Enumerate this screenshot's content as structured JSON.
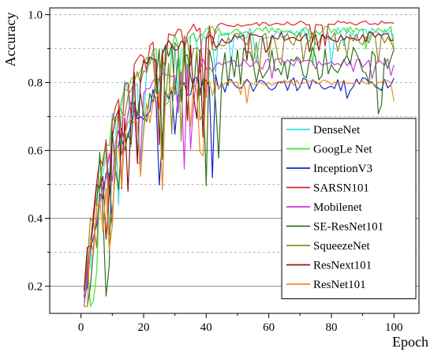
{
  "chart_data": {
    "type": "line",
    "title": "",
    "xlabel": "Epoch",
    "ylabel": "Accuracy",
    "xlim": [
      -10,
      108
    ],
    "ylim": [
      0.12,
      1.02
    ],
    "xticks": [
      0,
      20,
      40,
      60,
      80,
      100
    ],
    "yticks": [
      0.2,
      0.4,
      0.6,
      0.8,
      1.0
    ],
    "ytick_labels": [
      "0.2",
      "0.4",
      "0.6",
      "0.8",
      "1.0"
    ],
    "grid": "horizontal dashed",
    "legend_position": "right",
    "series": [
      {
        "name": "DenseNet",
        "color": "#33e0e6",
        "seed": 11,
        "base": 0.945,
        "noise": 0.018,
        "dips": 0.06
      },
      {
        "name": "GoogLe Net",
        "color": "#3ee23e",
        "seed": 23,
        "base": 0.955,
        "noise": 0.012,
        "dips": 0.05
      },
      {
        "name": "InceptionV3",
        "color": "#1526c8",
        "seed": 37,
        "base": 0.795,
        "noise": 0.02,
        "dips": 0.05
      },
      {
        "name": "SARSN101",
        "color": "#dd2424",
        "seed": 41,
        "base": 0.975,
        "noise": 0.007,
        "dips": 0.03
      },
      {
        "name": "Mobilenet",
        "color": "#cc3cdc",
        "seed": 53,
        "base": 0.86,
        "noise": 0.012,
        "dips": 0.04
      },
      {
        "name": "SE-ResNet101",
        "color": "#2f6f1c",
        "seed": 67,
        "base": 0.85,
        "noise": 0.06,
        "dips": 0.12
      },
      {
        "name": "SqueezeNet",
        "color": "#8f8a2a",
        "seed": 71,
        "base": 0.93,
        "noise": 0.02,
        "dips": 0.05
      },
      {
        "name": "ResNext101",
        "color": "#8b1616",
        "seed": 83,
        "base": 0.935,
        "noise": 0.015,
        "dips": 0.04
      },
      {
        "name": "ResNet101",
        "color": "#f08c1e",
        "seed": 97,
        "base": 0.8,
        "noise": 0.008,
        "dips": 0.02
      }
    ]
  }
}
